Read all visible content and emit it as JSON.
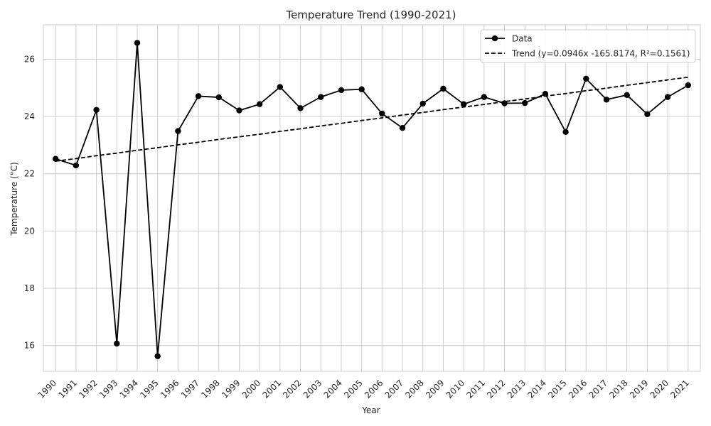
{
  "chart_data": {
    "type": "line",
    "title": "Temperature Trend (1990-2021)",
    "xlabel": "Year",
    "ylabel": "Temperature (°C)",
    "x": [
      1990,
      1991,
      1992,
      1993,
      1994,
      1995,
      1996,
      1997,
      1998,
      1999,
      2000,
      2001,
      2002,
      2003,
      2004,
      2005,
      2006,
      2007,
      2008,
      2009,
      2010,
      2011,
      2012,
      2013,
      2014,
      2015,
      2016,
      2017,
      2018,
      2019,
      2020,
      2021
    ],
    "xticks": [
      "1990",
      "1991",
      "1992",
      "1993",
      "1994",
      "1995",
      "1996",
      "1997",
      "1998",
      "1999",
      "2000",
      "2001",
      "2002",
      "2003",
      "2004",
      "2005",
      "2006",
      "2007",
      "2008",
      "2009",
      "2010",
      "2011",
      "2012",
      "2013",
      "2014",
      "2015",
      "2016",
      "2017",
      "2018",
      "2019",
      "2020",
      "2021"
    ],
    "yticks": [
      "16",
      "18",
      "20",
      "22",
      "24",
      "26"
    ],
    "ylim": [
      15.1,
      27.2
    ],
    "xlim": [
      1989.4,
      2021.6
    ],
    "grid": true,
    "legend_position": "top-right",
    "series": [
      {
        "name": "Data",
        "style": "solid-with-markers",
        "color": "#000000",
        "values": [
          22.52,
          22.29,
          24.23,
          16.07,
          26.57,
          15.63,
          23.49,
          24.71,
          24.67,
          24.21,
          24.43,
          25.03,
          24.29,
          24.68,
          24.92,
          24.95,
          24.1,
          23.6,
          24.45,
          24.97,
          24.43,
          24.68,
          24.46,
          24.47,
          24.79,
          23.46,
          25.32,
          24.59,
          24.75,
          24.08,
          24.68,
          25.09
        ]
      },
      {
        "name": "Trend (y=0.0946x -165.8174, R²=0.1561)",
        "style": "dashed",
        "color": "#000000",
        "values": [
          22.44,
          22.53,
          22.63,
          22.72,
          22.82,
          22.91,
          23.01,
          23.1,
          23.2,
          23.29,
          23.38,
          23.48,
          23.57,
          23.67,
          23.76,
          23.86,
          23.95,
          24.05,
          24.14,
          24.24,
          24.33,
          24.42,
          24.52,
          24.61,
          24.71,
          24.8,
          24.9,
          24.99,
          25.09,
          25.18,
          25.28,
          25.37
        ]
      }
    ]
  }
}
